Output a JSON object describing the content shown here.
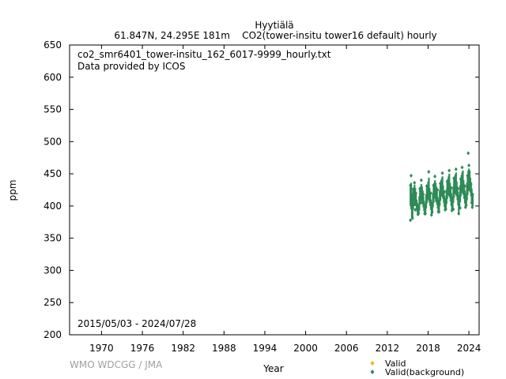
{
  "chart_data": {
    "type": "scatter",
    "title": "Hyytiälä",
    "subtitle": "61.847N, 24.295E 181m    CO2(tower-insitu tower16 default) hourly",
    "xlabel": "Year",
    "ylabel": "ppm",
    "xlim": [
      1965.3,
      2025.5
    ],
    "ylim": [
      200,
      650
    ],
    "x_ticks": [
      1970,
      1976,
      1982,
      1988,
      1994,
      2000,
      2006,
      2012,
      2018,
      2024
    ],
    "y_ticks": [
      200,
      250,
      300,
      350,
      400,
      450,
      500,
      550,
      600,
      650
    ],
    "annotations": {
      "file": "co2_smr6401_tower-insitu_162_6017-9999_hourly.txt",
      "provider": "Data provided by ICOS",
      "period": "2015/05/03 - 2024/07/28",
      "credit": "WMO WDCGG / JMA"
    },
    "legend_position": "bottom-right",
    "series": [
      {
        "name": "Valid",
        "color": "#e6b800",
        "marker": "diamond",
        "points": []
      },
      {
        "name": "Valid(background)",
        "color": "#2e8b57",
        "marker": "diamond",
        "points": [
          [
            2015.4,
            378
          ],
          [
            2015.4,
            432
          ],
          [
            2015.5,
            447
          ],
          [
            2015.6,
            412
          ],
          [
            2015.7,
            381
          ],
          [
            2015.8,
            426
          ],
          [
            2015.9,
            405
          ],
          [
            2016.0,
            436
          ],
          [
            2016.1,
            394
          ],
          [
            2016.2,
            420
          ],
          [
            2016.3,
            402
          ],
          [
            2016.5,
            387
          ],
          [
            2016.6,
            389
          ],
          [
            2016.8,
            427
          ],
          [
            2016.9,
            418
          ],
          [
            2017.0,
            440
          ],
          [
            2017.1,
            405
          ],
          [
            2017.3,
            418
          ],
          [
            2017.5,
            388
          ],
          [
            2017.6,
            388
          ],
          [
            2017.8,
            431
          ],
          [
            2017.9,
            419
          ],
          [
            2018.1,
            453
          ],
          [
            2018.2,
            412
          ],
          [
            2018.4,
            420
          ],
          [
            2018.5,
            386
          ],
          [
            2018.6,
            390
          ],
          [
            2018.8,
            432
          ],
          [
            2018.9,
            421
          ],
          [
            2019.0,
            446
          ],
          [
            2019.2,
            408
          ],
          [
            2019.4,
            425
          ],
          [
            2019.5,
            391
          ],
          [
            2019.6,
            391
          ],
          [
            2019.8,
            435
          ],
          [
            2019.9,
            428
          ],
          [
            2020.1,
            451
          ],
          [
            2020.2,
            415
          ],
          [
            2020.4,
            422
          ],
          [
            2020.5,
            394
          ],
          [
            2020.6,
            395
          ],
          [
            2020.8,
            438
          ],
          [
            2020.9,
            429
          ],
          [
            2021.1,
            455
          ],
          [
            2021.2,
            416
          ],
          [
            2021.4,
            428
          ],
          [
            2021.5,
            393
          ],
          [
            2021.7,
            395
          ],
          [
            2021.8,
            443
          ],
          [
            2021.9,
            430
          ],
          [
            2022.1,
            457
          ],
          [
            2022.2,
            418
          ],
          [
            2022.4,
            427
          ],
          [
            2022.5,
            388
          ],
          [
            2022.7,
            397
          ],
          [
            2022.8,
            442
          ],
          [
            2022.9,
            432
          ],
          [
            2023.0,
            460
          ],
          [
            2023.2,
            420
          ],
          [
            2023.4,
            431
          ],
          [
            2023.5,
            398
          ],
          [
            2023.6,
            401
          ],
          [
            2023.8,
            447
          ],
          [
            2023.9,
            482
          ],
          [
            2024.0,
            463
          ],
          [
            2024.1,
            429
          ],
          [
            2024.3,
            434
          ],
          [
            2024.4,
            405
          ],
          [
            2024.5,
            398
          ],
          [
            2024.55,
            418
          ]
        ],
        "daily_ranges": [
          [
            2015.4,
            400,
            430
          ],
          [
            2015.5,
            395,
            436
          ],
          [
            2015.6,
            382,
            420
          ],
          [
            2015.7,
            380,
            415
          ],
          [
            2015.8,
            395,
            428
          ],
          [
            2015.9,
            400,
            424
          ],
          [
            2016.0,
            405,
            433
          ],
          [
            2016.1,
            400,
            428
          ],
          [
            2016.2,
            402,
            420
          ],
          [
            2016.3,
            395,
            410
          ],
          [
            2016.4,
            390,
            405
          ],
          [
            2016.5,
            385,
            400
          ],
          [
            2016.6,
            386,
            402
          ],
          [
            2016.7,
            393,
            415
          ],
          [
            2016.8,
            402,
            428
          ],
          [
            2016.9,
            408,
            430
          ],
          [
            2017.0,
            410,
            434
          ],
          [
            2017.1,
            405,
            430
          ],
          [
            2017.2,
            404,
            424
          ],
          [
            2017.3,
            398,
            415
          ],
          [
            2017.4,
            392,
            408
          ],
          [
            2017.5,
            387,
            402
          ],
          [
            2017.6,
            388,
            404
          ],
          [
            2017.7,
            396,
            418
          ],
          [
            2017.8,
            404,
            430
          ],
          [
            2017.9,
            410,
            432
          ],
          [
            2018.0,
            412,
            438
          ],
          [
            2018.1,
            408,
            444
          ],
          [
            2018.2,
            405,
            428
          ],
          [
            2018.3,
            400,
            418
          ],
          [
            2018.4,
            394,
            410
          ],
          [
            2018.5,
            386,
            404
          ],
          [
            2018.6,
            389,
            406
          ],
          [
            2018.7,
            398,
            420
          ],
          [
            2018.8,
            405,
            432
          ],
          [
            2018.9,
            412,
            436
          ],
          [
            2019.0,
            414,
            440
          ],
          [
            2019.1,
            410,
            436
          ],
          [
            2019.2,
            408,
            430
          ],
          [
            2019.3,
            402,
            422
          ],
          [
            2019.4,
            396,
            414
          ],
          [
            2019.5,
            390,
            408
          ],
          [
            2019.6,
            391,
            410
          ],
          [
            2019.7,
            400,
            424
          ],
          [
            2019.8,
            408,
            434
          ],
          [
            2019.9,
            415,
            440
          ],
          [
            2020.0,
            416,
            443
          ],
          [
            2020.1,
            414,
            446
          ],
          [
            2020.2,
            411,
            432
          ],
          [
            2020.3,
            405,
            424
          ],
          [
            2020.4,
            398,
            416
          ],
          [
            2020.5,
            393,
            411
          ],
          [
            2020.6,
            394,
            412
          ],
          [
            2020.7,
            403,
            426
          ],
          [
            2020.8,
            411,
            437
          ],
          [
            2020.9,
            417,
            442
          ],
          [
            2021.0,
            418,
            446
          ],
          [
            2021.1,
            416,
            450
          ],
          [
            2021.2,
            413,
            436
          ],
          [
            2021.3,
            407,
            428
          ],
          [
            2021.4,
            400,
            420
          ],
          [
            2021.5,
            393,
            412
          ],
          [
            2021.6,
            395,
            415
          ],
          [
            2021.7,
            405,
            430
          ],
          [
            2021.8,
            413,
            441
          ],
          [
            2021.9,
            419,
            446
          ],
          [
            2022.0,
            420,
            449
          ],
          [
            2022.1,
            418,
            452
          ],
          [
            2022.2,
            415,
            438
          ],
          [
            2022.3,
            409,
            430
          ],
          [
            2022.4,
            401,
            422
          ],
          [
            2022.5,
            388,
            414
          ],
          [
            2022.6,
            397,
            417
          ],
          [
            2022.7,
            406,
            432
          ],
          [
            2022.8,
            415,
            443
          ],
          [
            2022.9,
            421,
            448
          ],
          [
            2023.0,
            423,
            452
          ],
          [
            2023.1,
            420,
            455
          ],
          [
            2023.2,
            417,
            440
          ],
          [
            2023.3,
            411,
            433
          ],
          [
            2023.4,
            404,
            424
          ],
          [
            2023.5,
            398,
            418
          ],
          [
            2023.6,
            400,
            420
          ],
          [
            2023.7,
            409,
            436
          ],
          [
            2023.8,
            417,
            447
          ],
          [
            2023.9,
            423,
            455
          ],
          [
            2024.0,
            426,
            458
          ],
          [
            2024.1,
            424,
            455
          ],
          [
            2024.2,
            421,
            444
          ],
          [
            2024.3,
            415,
            437
          ],
          [
            2024.4,
            407,
            427
          ],
          [
            2024.5,
            398,
            420
          ],
          [
            2024.55,
            400,
            418
          ]
        ]
      }
    ]
  }
}
